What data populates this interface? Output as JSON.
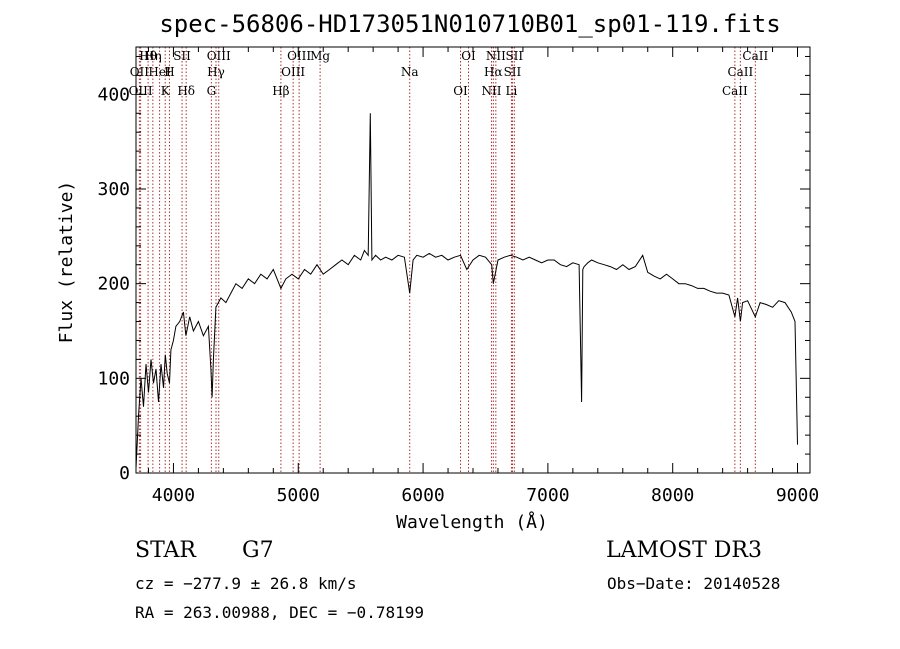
{
  "chart_data": {
    "type": "line",
    "title": "spec-56806-HD173051N010710B01_sp01-119.fits",
    "xlabel": "Wavelength (Å)",
    "ylabel": "Flux (relative)",
    "xlim": [
      3700,
      9100
    ],
    "ylim": [
      0,
      450
    ],
    "xticks": [
      4000,
      5000,
      6000,
      7000,
      8000,
      9000
    ],
    "yticks": [
      0,
      100,
      200,
      300,
      400
    ],
    "series": [
      {
        "name": "flux",
        "x": [
          3700,
          3720,
          3740,
          3760,
          3780,
          3800,
          3820,
          3840,
          3860,
          3880,
          3900,
          3920,
          3935,
          3950,
          3968,
          3980,
          4000,
          4020,
          4050,
          4080,
          4100,
          4130,
          4160,
          4200,
          4240,
          4280,
          4300,
          4310,
          4320,
          4340,
          4380,
          4420,
          4460,
          4500,
          4550,
          4600,
          4650,
          4700,
          4750,
          4800,
          4861,
          4900,
          4950,
          5000,
          5050,
          5100,
          5150,
          5200,
          5250,
          5300,
          5350,
          5400,
          5450,
          5500,
          5530,
          5560,
          5577,
          5590,
          5620,
          5660,
          5700,
          5750,
          5800,
          5850,
          5893,
          5920,
          5950,
          6000,
          6050,
          6100,
          6150,
          6200,
          6250,
          6300,
          6350,
          6400,
          6450,
          6500,
          6550,
          6563,
          6600,
          6650,
          6700,
          6750,
          6800,
          6850,
          6900,
          6950,
          7000,
          7050,
          7100,
          7150,
          7200,
          7250,
          7270,
          7280,
          7290,
          7320,
          7350,
          7400,
          7450,
          7500,
          7550,
          7600,
          7650,
          7700,
          7760,
          7800,
          7850,
          7900,
          7950,
          8000,
          8050,
          8100,
          8150,
          8200,
          8250,
          8300,
          8350,
          8400,
          8450,
          8498,
          8520,
          8542,
          8560,
          8600,
          8662,
          8700,
          8750,
          8800,
          8850,
          8900,
          8950,
          8980,
          9000
        ],
        "values": [
          5,
          60,
          100,
          70,
          115,
          85,
          120,
          95,
          110,
          75,
          115,
          90,
          125,
          105,
          95,
          130,
          140,
          155,
          160,
          170,
          145,
          165,
          150,
          160,
          145,
          155,
          110,
          80,
          120,
          175,
          185,
          180,
          190,
          200,
          195,
          205,
          200,
          210,
          205,
          215,
          195,
          205,
          210,
          205,
          215,
          210,
          220,
          210,
          215,
          220,
          225,
          220,
          230,
          225,
          235,
          230,
          380,
          225,
          230,
          225,
          228,
          225,
          230,
          228,
          190,
          225,
          230,
          228,
          232,
          228,
          230,
          225,
          228,
          230,
          215,
          225,
          230,
          228,
          220,
          200,
          225,
          228,
          230,
          228,
          225,
          228,
          225,
          222,
          225,
          225,
          220,
          218,
          222,
          220,
          75,
          215,
          218,
          222,
          225,
          222,
          220,
          218,
          215,
          220,
          215,
          218,
          230,
          212,
          208,
          205,
          210,
          205,
          200,
          200,
          198,
          195,
          195,
          192,
          190,
          190,
          188,
          165,
          185,
          160,
          180,
          182,
          165,
          180,
          178,
          175,
          182,
          180,
          170,
          160,
          30
        ]
      }
    ],
    "lines": [
      {
        "label": "Hθ",
        "x": 3797
      },
      {
        "label": "OII",
        "x": 3727
      },
      {
        "label": "OIII",
        "x": 3737
      },
      {
        "label": "Hη",
        "x": 3835
      },
      {
        "label": "HeI",
        "x": 3889
      },
      {
        "label": "K",
        "x": 3934
      },
      {
        "label": "SII",
        "x": 4069
      },
      {
        "label": "H",
        "x": 3968
      },
      {
        "label": "Hδ",
        "x": 4102
      },
      {
        "label": "OIII",
        "x": 4363
      },
      {
        "label": "Hγ",
        "x": 4341
      },
      {
        "label": "G",
        "x": 4304
      },
      {
        "label": "OIII",
        "x": 5007
      },
      {
        "label": "OIII",
        "x": 4959
      },
      {
        "label": "Hβ",
        "x": 4861
      },
      {
        "label": "Mg",
        "x": 5175
      },
      {
        "label": "Na",
        "x": 5893
      },
      {
        "label": "OI",
        "x": 6300
      },
      {
        "label": "OI",
        "x": 6364
      },
      {
        "label": "Hα",
        "x": 6563
      },
      {
        "label": "NII",
        "x": 6548
      },
      {
        "label": "NII",
        "x": 6583
      },
      {
        "label": "SII",
        "x": 6716
      },
      {
        "label": "Li",
        "x": 6708
      },
      {
        "label": "SII",
        "x": 6731
      },
      {
        "label": "CaII",
        "x": 8542
      },
      {
        "label": "CaII",
        "x": 8498
      },
      {
        "label": "CaII",
        "x": 8662
      }
    ]
  },
  "info": {
    "object_class": "STAR",
    "subclass": "G7",
    "survey": "LAMOST DR3",
    "cz": "cz = −277.9 ± 26.8 km/s",
    "obs_date": "Obs−Date: 20140528",
    "coords": "RA = 263.00988, DEC =  −0.78199"
  },
  "colors": {
    "line_marker": "#b03030",
    "spectrum": "#000000",
    "axes": "#000000"
  }
}
